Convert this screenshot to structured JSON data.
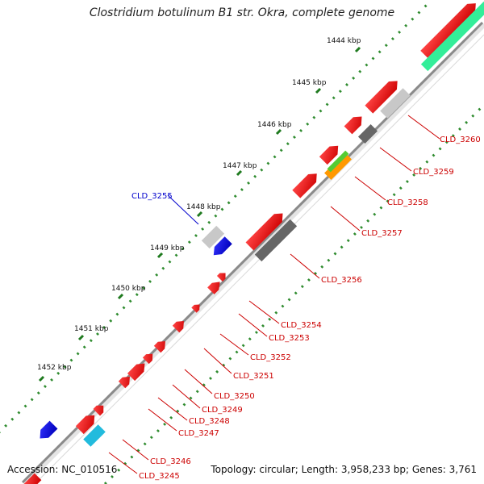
{
  "title": "Clostridium botulinum B1 str. Okra, complete genome",
  "footer": {
    "accession": "Accession: NC_010516",
    "topology": "Topology: circular; Length: 3,958,233 bp; Genes: 3,761"
  },
  "ticks": [
    "1444 kbp",
    "1445 kbp",
    "1446 kbp",
    "1447 kbp",
    "1448 kbp",
    "1449 kbp",
    "1450 kbp",
    "1451 kbp",
    "1452 kbp"
  ],
  "gene_labels": [
    {
      "name": "CLD_3260",
      "color": "#cc0000"
    },
    {
      "name": "CLD_3259",
      "color": "#cc0000"
    },
    {
      "name": "CLD_3258",
      "color": "#cc0000"
    },
    {
      "name": "CLD_3257",
      "color": "#cc0000"
    },
    {
      "name": "CLD_3256",
      "color": "#cc0000"
    },
    {
      "name": "CLD_3255",
      "color": "#0000cc"
    },
    {
      "name": "CLD_3254",
      "color": "#cc0000"
    },
    {
      "name": "CLD_3253",
      "color": "#cc0000"
    },
    {
      "name": "CLD_3252",
      "color": "#cc0000"
    },
    {
      "name": "CLD_3251",
      "color": "#cc0000"
    },
    {
      "name": "CLD_3250",
      "color": "#cc0000"
    },
    {
      "name": "CLD_3249",
      "color": "#cc0000"
    },
    {
      "name": "CLD_3248",
      "color": "#cc0000"
    },
    {
      "name": "CLD_3247",
      "color": "#cc0000"
    },
    {
      "name": "CLD_3246",
      "color": "#cc0000"
    },
    {
      "name": "CLD_3245",
      "color": "#cc0000"
    }
  ],
  "colors": {
    "backbone": "#8a8a8a",
    "tick_dots": "#2e8b2e",
    "gene_forward": "#e60000",
    "gene_reverse": "#0000ee",
    "pseudo_light": "#c8c8c8",
    "pseudo_dark": "#666666",
    "rna_green": "#33ee99",
    "cyan": "#22bbdd",
    "orange": "#ff9900"
  }
}
